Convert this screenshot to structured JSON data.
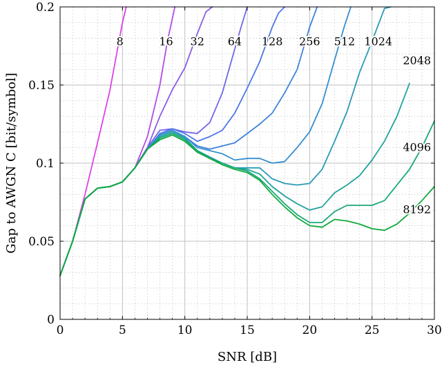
{
  "chart_data": {
    "type": "line",
    "title": "",
    "xlabel": "SNR [dB]",
    "ylabel": "Gap to AWGN C [bit/symbol]",
    "xlim": [
      0,
      30
    ],
    "ylim": [
      0,
      0.2
    ],
    "xticks": [
      "0",
      "5",
      "10",
      "15",
      "20",
      "25",
      "30"
    ],
    "yticks": [
      "0",
      "0.05",
      "0.1",
      "0.15",
      "0.2"
    ],
    "grid": true,
    "legend": "inline labels",
    "series": [
      {
        "name": "8",
        "color": "#e040e8",
        "label_x": 4.8,
        "label_y": 0.178,
        "x": [
          0,
          1,
          2,
          3,
          4,
          5,
          5.3
        ],
        "y": [
          0.028,
          0.05,
          0.08,
          0.113,
          0.147,
          0.19,
          0.2
        ]
      },
      {
        "name": "16",
        "color": "#b44ae8",
        "label_x": 8.5,
        "label_y": 0.178,
        "x": [
          0,
          1,
          2,
          3,
          4,
          5,
          6,
          7,
          8,
          8.6,
          9.2
        ],
        "y": [
          0.028,
          0.05,
          0.077,
          0.084,
          0.085,
          0.088,
          0.097,
          0.117,
          0.15,
          0.178,
          0.2
        ]
      },
      {
        "name": "32",
        "color": "#8a5ae8",
        "label_x": 11,
        "label_y": 0.178,
        "x": [
          0,
          1,
          2,
          3,
          4,
          5,
          6,
          7,
          8,
          9,
          10,
          11,
          11.7,
          12.2
        ],
        "y": [
          0.028,
          0.05,
          0.077,
          0.084,
          0.085,
          0.088,
          0.097,
          0.11,
          0.13,
          0.147,
          0.161,
          0.183,
          0.197,
          0.2
        ]
      },
      {
        "name": "64",
        "color": "#6e66ea",
        "label_x": 14,
        "label_y": 0.178,
        "x": [
          0,
          1,
          2,
          3,
          4,
          5,
          6,
          7,
          8,
          9,
          10,
          11,
          12,
          13,
          14,
          14.5,
          15
        ],
        "y": [
          0.028,
          0.05,
          0.077,
          0.084,
          0.085,
          0.088,
          0.097,
          0.11,
          0.121,
          0.122,
          0.12,
          0.119,
          0.126,
          0.145,
          0.173,
          0.187,
          0.2
        ]
      },
      {
        "name": "128",
        "color": "#4e76e6",
        "label_x": 17,
        "label_y": 0.178,
        "x": [
          0,
          1,
          2,
          3,
          4,
          5,
          6,
          7,
          8,
          9,
          10,
          11,
          12,
          13,
          14,
          15,
          16,
          17,
          17.5,
          18
        ],
        "y": [
          0.028,
          0.05,
          0.077,
          0.084,
          0.085,
          0.088,
          0.097,
          0.109,
          0.119,
          0.122,
          0.119,
          0.114,
          0.117,
          0.121,
          0.132,
          0.148,
          0.165,
          0.187,
          0.196,
          0.2
        ]
      },
      {
        "name": "256",
        "color": "#3e82dc",
        "label_x": 20,
        "label_y": 0.178,
        "x": [
          0,
          1,
          2,
          3,
          4,
          5,
          6,
          7,
          8,
          9,
          10,
          11,
          12,
          13,
          14,
          15,
          16,
          17,
          18,
          19,
          20,
          20.6
        ],
        "y": [
          0.028,
          0.05,
          0.077,
          0.084,
          0.085,
          0.088,
          0.097,
          0.109,
          0.118,
          0.121,
          0.117,
          0.111,
          0.109,
          0.111,
          0.113,
          0.119,
          0.125,
          0.132,
          0.145,
          0.16,
          0.187,
          0.2
        ]
      },
      {
        "name": "512",
        "color": "#338ed0",
        "label_x": 22.8,
        "label_y": 0.178,
        "x": [
          0,
          1,
          2,
          3,
          4,
          5,
          6,
          7,
          8,
          9,
          10,
          11,
          12,
          13,
          14,
          15,
          16,
          17,
          18,
          19,
          20,
          21,
          22,
          22.8,
          23.3
        ],
        "y": [
          0.028,
          0.05,
          0.077,
          0.084,
          0.085,
          0.088,
          0.097,
          0.109,
          0.118,
          0.121,
          0.117,
          0.11,
          0.108,
          0.106,
          0.102,
          0.103,
          0.103,
          0.1,
          0.101,
          0.11,
          0.12,
          0.138,
          0.166,
          0.188,
          0.2
        ]
      },
      {
        "name": "1024",
        "color": "#2a9ab6",
        "label_x": 25.5,
        "label_y": 0.178,
        "x": [
          0,
          1,
          2,
          3,
          4,
          5,
          6,
          7,
          8,
          9,
          10,
          11,
          12,
          13,
          14,
          15,
          16,
          17,
          18,
          19,
          20,
          21,
          22,
          23,
          24,
          25,
          26,
          26.5
        ],
        "y": [
          0.028,
          0.05,
          0.077,
          0.084,
          0.085,
          0.088,
          0.097,
          0.109,
          0.117,
          0.12,
          0.116,
          0.108,
          0.104,
          0.1,
          0.097,
          0.097,
          0.097,
          0.09,
          0.087,
          0.086,
          0.087,
          0.096,
          0.114,
          0.133,
          0.158,
          0.178,
          0.199,
          0.2
        ]
      },
      {
        "name": "2048",
        "color": "#20a39a",
        "label_x": 28.6,
        "label_y": 0.166,
        "x": [
          0,
          1,
          2,
          3,
          4,
          5,
          6,
          7,
          8,
          9,
          10,
          11,
          12,
          13,
          14,
          15,
          16,
          17,
          18,
          19,
          20,
          21,
          22,
          23,
          24,
          25,
          26,
          27,
          28
        ],
        "y": [
          0.028,
          0.05,
          0.077,
          0.084,
          0.085,
          0.088,
          0.097,
          0.109,
          0.117,
          0.12,
          0.116,
          0.108,
          0.103,
          0.1,
          0.097,
          0.096,
          0.093,
          0.085,
          0.079,
          0.074,
          0.07,
          0.072,
          0.081,
          0.086,
          0.092,
          0.102,
          0.114,
          0.13,
          0.151
        ]
      },
      {
        "name": "4096",
        "color": "#18a87a",
        "label_x": 28.6,
        "label_y": 0.1105,
        "x": [
          0,
          1,
          2,
          3,
          4,
          5,
          6,
          7,
          8,
          9,
          10,
          11,
          12,
          13,
          14,
          15,
          16,
          17,
          18,
          19,
          20,
          21,
          22,
          23,
          24,
          25,
          26,
          27,
          28,
          29,
          30
        ],
        "y": [
          0.028,
          0.05,
          0.077,
          0.084,
          0.085,
          0.088,
          0.097,
          0.109,
          0.116,
          0.119,
          0.115,
          0.108,
          0.103,
          0.1,
          0.097,
          0.095,
          0.09,
          0.082,
          0.074,
          0.067,
          0.062,
          0.062,
          0.069,
          0.073,
          0.073,
          0.073,
          0.076,
          0.086,
          0.096,
          0.11,
          0.127
        ]
      },
      {
        "name": "8192",
        "color": "#10aa3a",
        "label_x": 28.6,
        "label_y": 0.0705,
        "x": [
          0,
          1,
          2,
          3,
          4,
          5,
          6,
          7,
          8,
          9,
          10,
          11,
          12,
          13,
          14,
          15,
          16,
          17,
          18,
          19,
          20,
          21,
          22,
          23,
          24,
          25,
          26,
          27,
          28,
          29,
          30
        ],
        "y": [
          0.028,
          0.05,
          0.077,
          0.084,
          0.085,
          0.088,
          0.097,
          0.109,
          0.115,
          0.118,
          0.114,
          0.107,
          0.103,
          0.099,
          0.096,
          0.094,
          0.089,
          0.08,
          0.072,
          0.065,
          0.06,
          0.059,
          0.064,
          0.063,
          0.061,
          0.058,
          0.057,
          0.061,
          0.068,
          0.076,
          0.085
        ]
      }
    ]
  }
}
